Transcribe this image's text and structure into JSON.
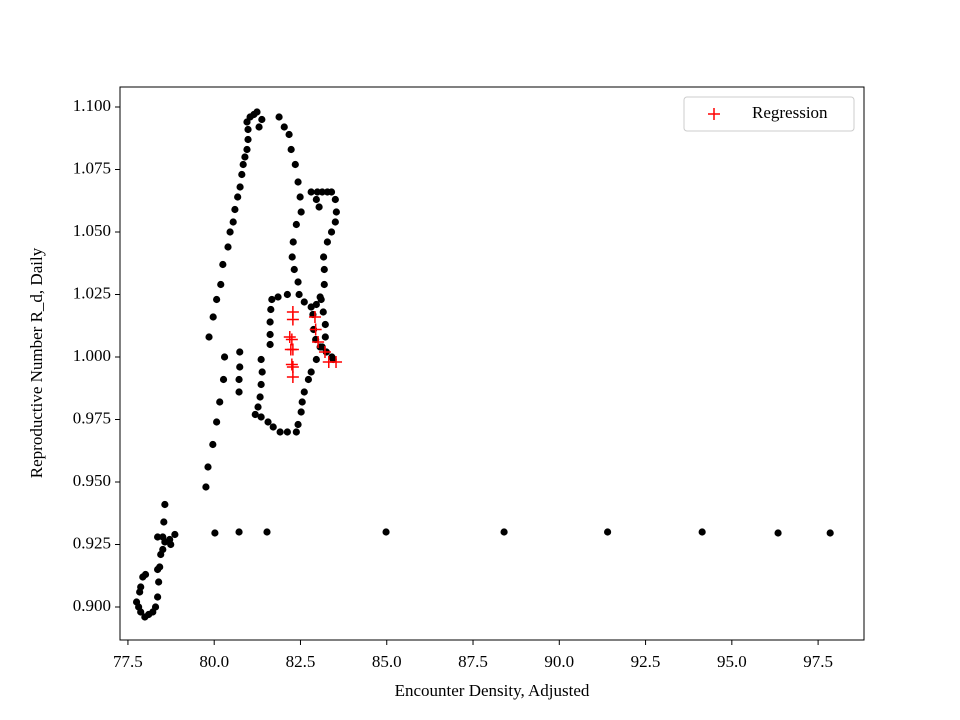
{
  "chart_data": {
    "type": "scatter",
    "xlabel": "Encounter Density, Adjusted",
    "ylabel": "Reproductive Number R_d, Daily",
    "xlim": [
      77.27,
      98.83
    ],
    "ylim": [
      0.8868,
      1.108
    ],
    "xticks": [
      77.5,
      {
        "value": 80,
        "label": "80.0"
      },
      82.5,
      {
        "value": 85,
        "label": "85.0"
      },
      87.5,
      {
        "value": 90,
        "label": "90.0"
      },
      92.5,
      {
        "value": 95,
        "label": "95.0"
      },
      97.5
    ],
    "yticks": [
      {
        "value": 0.9,
        "label": "0.900"
      },
      0.925,
      {
        "value": 0.95,
        "label": "0.950"
      },
      0.975,
      {
        "value": 1,
        "label": "1.000"
      },
      1.025,
      {
        "value": 1.05,
        "label": "1.050"
      },
      1.075,
      {
        "value": 1.1,
        "label": "1.100"
      }
    ],
    "legend": "upper right",
    "series": [
      {
        "color": "#000000",
        "marker": "dot",
        "x": [
          77.75,
          77.81,
          77.87,
          77.99,
          78.1,
          78.22,
          78.3,
          78.36,
          78.39,
          78.36,
          78.42,
          78.45,
          78.51,
          78.57,
          78.51,
          78.36,
          78.54,
          78.57,
          78.71,
          78.74,
          78.86,
          77.93,
          77.87,
          78.01,
          77.84,
          80.02,
          80.72,
          81.53,
          84.98,
          88.4,
          91.4,
          94.14,
          96.34,
          97.85,
          79.76,
          79.82,
          79.96,
          80.07,
          80.16,
          80.27,
          80.3,
          79.85,
          79.97,
          80.07,
          80.19,
          80.25,
          80.4,
          80.46,
          80.55,
          80.6,
          80.68,
          80.75,
          80.8,
          80.84,
          80.89,
          80.95,
          80.98,
          80.98,
          80.95,
          81.04,
          81.15,
          81.24,
          81.38,
          81.3,
          81.88,
          82.03,
          82.17,
          82.23,
          82.35,
          82.43,
          82.49,
          82.52,
          82.38,
          82.29,
          82.26,
          82.32,
          82.43,
          82.81,
          82.99,
          83.13,
          83.28,
          83.4,
          83.51,
          83.54,
          83.51,
          83.4,
          83.28,
          83.17,
          83.19,
          83.19,
          83.07,
          82.96,
          82.81,
          82.61,
          82.46,
          82.12,
          81.85,
          81.67,
          81.64,
          81.62,
          81.62,
          81.62,
          82.96,
          83.04,
          83.1,
          83.16,
          83.22,
          83.22,
          83.13,
          82.96,
          82.81,
          82.73,
          82.61,
          82.55,
          82.52,
          82.43,
          82.38,
          82.12,
          81.91,
          81.71,
          81.56,
          81.36,
          81.19,
          81.27,
          81.33,
          81.36,
          81.39,
          81.36,
          80.74,
          80.74,
          80.72,
          80.72,
          82.86,
          82.88,
          82.94,
          83.07,
          83.25,
          83.41,
          83.45
        ],
        "values": [
          0.902,
          0.9,
          0.898,
          0.896,
          0.897,
          0.898,
          0.9,
          0.904,
          0.91,
          0.915,
          0.916,
          0.921,
          0.923,
          0.926,
          0.928,
          0.928,
          0.934,
          0.941,
          0.927,
          0.925,
          0.929,
          0.912,
          0.908,
          0.913,
          0.906,
          0.9296,
          0.93,
          0.93,
          0.93,
          0.93,
          0.93,
          0.93,
          0.9296,
          0.9296,
          0.948,
          0.956,
          0.965,
          0.974,
          0.982,
          0.991,
          1.0,
          1.008,
          1.016,
          1.023,
          1.029,
          1.037,
          1.044,
          1.05,
          1.054,
          1.059,
          1.064,
          1.068,
          1.073,
          1.077,
          1.08,
          1.083,
          1.087,
          1.091,
          1.094,
          1.096,
          1.097,
          1.098,
          1.095,
          1.092,
          1.096,
          1.092,
          1.089,
          1.083,
          1.077,
          1.07,
          1.064,
          1.058,
          1.053,
          1.046,
          1.04,
          1.035,
          1.03,
          1.066,
          1.066,
          1.066,
          1.066,
          1.066,
          1.063,
          1.058,
          1.054,
          1.05,
          1.046,
          1.04,
          1.035,
          1.029,
          1.024,
          1.021,
          1.02,
          1.022,
          1.025,
          1.025,
          1.024,
          1.023,
          1.019,
          1.014,
          1.009,
          1.005,
          1.063,
          1.06,
          1.023,
          1.018,
          1.013,
          1.008,
          1.004,
          0.999,
          0.994,
          0.991,
          0.986,
          0.982,
          0.978,
          0.973,
          0.97,
          0.97,
          0.97,
          0.972,
          0.974,
          0.976,
          0.977,
          0.98,
          0.984,
          0.989,
          0.994,
          0.999,
          1.002,
          0.996,
          0.991,
          0.986,
          1.017,
          1.011,
          1.007,
          1.004,
          1.002,
          1.0,
          0.999
        ]
      },
      {
        "name": "Regression",
        "color": "#ff0000",
        "marker": "plus",
        "x": [
          82.28,
          82.28,
          82.19,
          82.25,
          82.22,
          82.28,
          82.25,
          82.28,
          82.28,
          82.92,
          82.94,
          83.01,
          83.21,
          83.32,
          83.53
        ],
        "values": [
          1.018,
          1.015,
          1.008,
          1.007,
          1.003,
          1.003,
          0.997,
          0.996,
          0.992,
          1.016,
          1.011,
          1.006,
          1.002,
          0.998,
          0.998
        ]
      }
    ]
  }
}
